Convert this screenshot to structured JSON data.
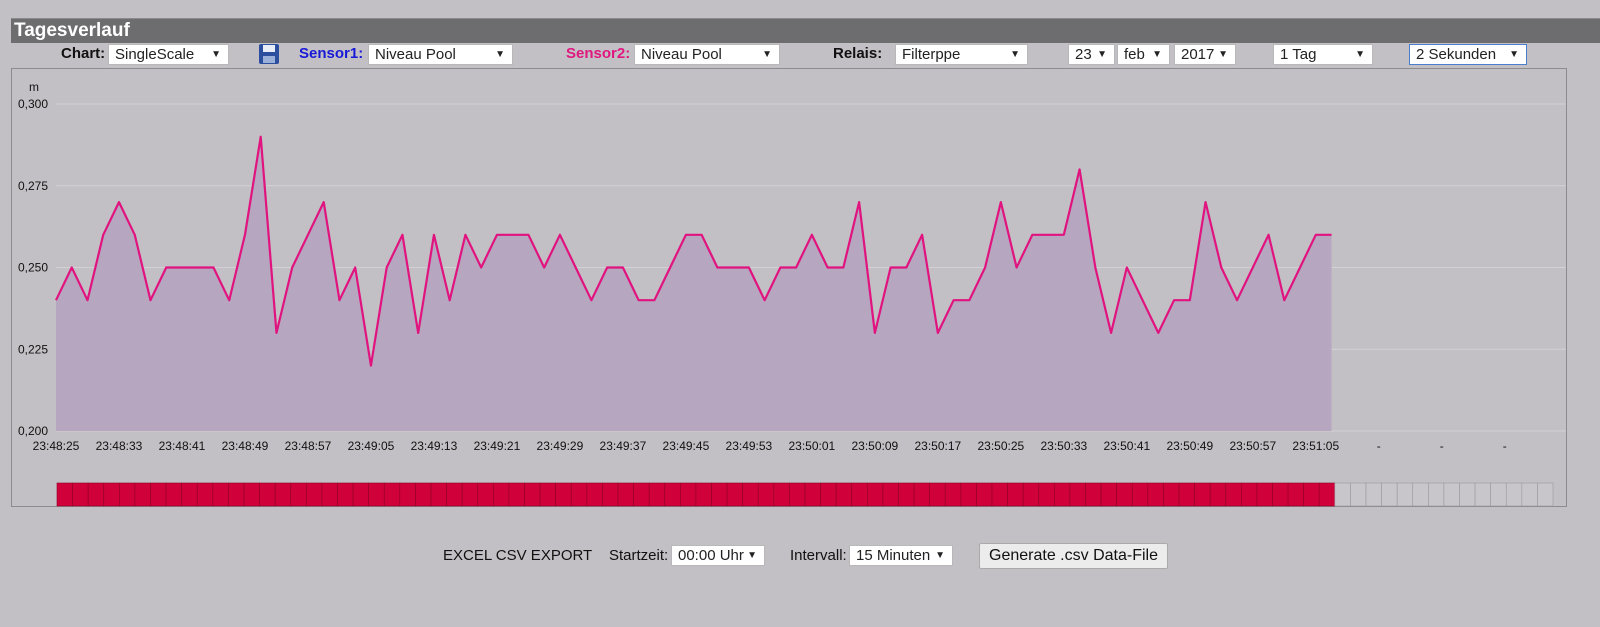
{
  "header": {
    "title": "Tagesverlauf"
  },
  "controls": {
    "chart_label": "Chart:",
    "chart_select": "SingleScale",
    "sensor1_label": "Sensor1:",
    "sensor1_select": "Niveau Pool",
    "sensor2_label": "Sensor2:",
    "sensor2_select": "Niveau Pool",
    "relais_label": "Relais:",
    "relais_select": "Filterppe",
    "day_select": "23",
    "month_select": "feb",
    "year_select": "2017",
    "range_select": "1 Tag",
    "interval_select": "2 Sekunden"
  },
  "chart_data": {
    "type": "area",
    "y_label": "m",
    "color": "#e0137f",
    "fill_color": "#b7a6c0",
    "grid": true,
    "categories": [
      "23:48:25",
      null,
      null,
      null,
      "23:48:33",
      null,
      null,
      null,
      "23:48:41",
      null,
      null,
      null,
      "23:48:49",
      null,
      null,
      null,
      "23:48:57",
      null,
      null,
      null,
      "23:49:05",
      null,
      null,
      null,
      "23:49:13",
      null,
      null,
      null,
      "23:49:21",
      null,
      null,
      null,
      "23:49:29",
      null,
      null,
      null,
      "23:49:37",
      null,
      null,
      null,
      "23:49:45",
      null,
      null,
      null,
      "23:49:53",
      null,
      null,
      null,
      "23:50:01",
      null,
      null,
      null,
      "23:50:09",
      null,
      null,
      null,
      "23:50:17",
      null,
      null,
      null,
      "23:50:25",
      null,
      null,
      null,
      "23:50:33",
      null,
      null,
      null,
      "23:50:41",
      null,
      null,
      null,
      "23:50:49",
      null,
      null,
      null,
      "23:50:57",
      null,
      null,
      null,
      "23:51:05",
      null,
      null,
      null,
      "-",
      null,
      null,
      null,
      "-",
      null,
      null,
      null,
      "-",
      null,
      null,
      null
    ],
    "values": [
      0.24,
      0.25,
      0.24,
      0.26,
      0.27,
      0.26,
      0.24,
      0.25,
      0.25,
      0.25,
      0.25,
      0.24,
      0.26,
      0.29,
      0.23,
      0.25,
      0.26,
      0.27,
      0.24,
      0.25,
      0.22,
      0.25,
      0.26,
      0.23,
      0.26,
      0.24,
      0.26,
      0.25,
      0.26,
      0.26,
      0.26,
      0.25,
      0.26,
      0.25,
      0.24,
      0.25,
      0.25,
      0.24,
      0.24,
      0.25,
      0.26,
      0.26,
      0.25,
      0.25,
      0.25,
      0.24,
      0.25,
      0.25,
      0.26,
      0.25,
      0.25,
      0.27,
      0.23,
      0.25,
      0.25,
      0.26,
      0.23,
      0.24,
      0.24,
      0.25,
      0.27,
      0.25,
      0.26,
      0.26,
      0.26,
      0.28,
      0.25,
      0.23,
      0.25,
      0.24,
      0.23,
      0.24,
      0.24,
      0.27,
      0.25,
      0.24,
      0.25,
      0.26,
      0.24,
      0.25,
      0.26,
      0.26,
      null,
      null,
      null,
      null,
      null,
      null,
      null,
      null,
      null,
      null,
      null,
      null,
      null,
      null
    ],
    "ylim": [
      0.2,
      0.3
    ],
    "yticks": [
      {
        "value": 0.2,
        "label": "0,200"
      },
      {
        "value": 0.225,
        "label": "0,225"
      },
      {
        "value": 0.25,
        "label": "0,250"
      },
      {
        "value": 0.275,
        "label": "0,275"
      },
      {
        "value": 0.3,
        "label": "0,300"
      }
    ],
    "relay_on_color": "#d0003a",
    "relay_off_color": "#c8c6ca"
  },
  "export": {
    "title": "EXCEL CSV EXPORT",
    "start_label": "Startzeit:",
    "start_select": "00:00 Uhr",
    "interval_label": "Intervall:",
    "interval_select": "15 Minuten",
    "button": "Generate .csv Data-File"
  }
}
